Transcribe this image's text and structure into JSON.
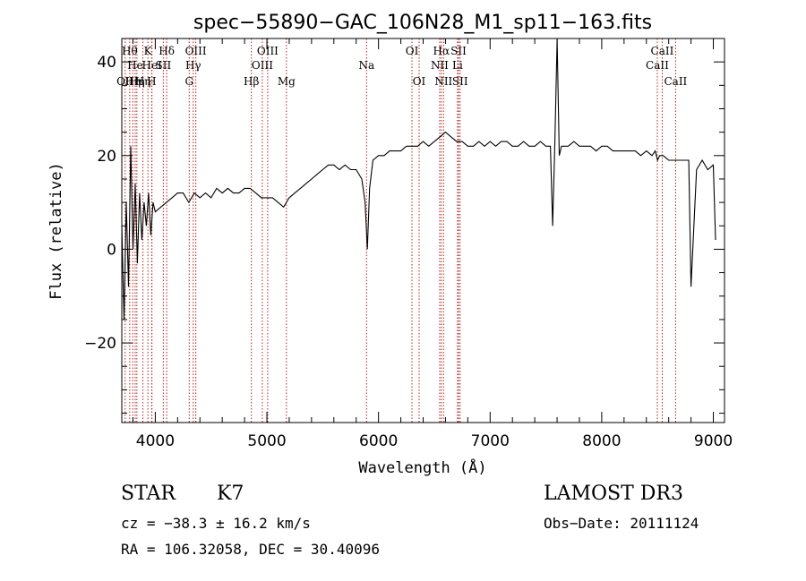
{
  "chart_data": {
    "type": "line",
    "title": "spec−55890−GAC_106N28_M1_sp11−163.fits",
    "xlabel": "Wavelength (Å)",
    "ylabel": "Flux (relative)",
    "xlim": [
      3700,
      9100
    ],
    "ylim": [
      -37,
      45
    ],
    "xticks": [
      4000,
      5000,
      6000,
      7000,
      8000,
      9000
    ],
    "xtick_labels": [
      "4000",
      "5000",
      "6000",
      "7000",
      "8000",
      "9000"
    ],
    "yticks": [
      -20,
      0,
      20,
      40
    ],
    "ytick_labels": [
      "−20",
      "0",
      "20",
      "40"
    ],
    "grid": false,
    "series": [
      {
        "name": "flux",
        "x": [
          3700,
          3720,
          3740,
          3760,
          3780,
          3800,
          3820,
          3840,
          3860,
          3880,
          3900,
          3920,
          3940,
          3960,
          3980,
          4000,
          4050,
          4100,
          4150,
          4200,
          4250,
          4300,
          4350,
          4400,
          4450,
          4500,
          4550,
          4600,
          4650,
          4700,
          4750,
          4800,
          4850,
          4900,
          4950,
          5000,
          5050,
          5100,
          5150,
          5200,
          5250,
          5300,
          5350,
          5400,
          5450,
          5500,
          5550,
          5600,
          5650,
          5700,
          5750,
          5800,
          5850,
          5880,
          5900,
          5920,
          5950,
          6000,
          6050,
          6100,
          6150,
          6200,
          6250,
          6300,
          6350,
          6400,
          6450,
          6500,
          6550,
          6600,
          6650,
          6700,
          6750,
          6800,
          6850,
          6900,
          6950,
          7000,
          7050,
          7100,
          7150,
          7200,
          7250,
          7300,
          7350,
          7400,
          7450,
          7500,
          7540,
          7560,
          7580,
          7600,
          7620,
          7640,
          7660,
          7700,
          7750,
          7800,
          7850,
          7900,
          7950,
          8000,
          8050,
          8100,
          8150,
          8200,
          8250,
          8300,
          8350,
          8400,
          8450,
          8480,
          8500,
          8520,
          8550,
          8600,
          8650,
          8700,
          8750,
          8780,
          8800,
          8850,
          8900,
          8950,
          9000,
          9020
        ],
        "y": [
          5,
          -15,
          10,
          -8,
          22,
          0,
          14,
          -3,
          12,
          2,
          10,
          5,
          12,
          3,
          10,
          8,
          9,
          10,
          11,
          12,
          12,
          10,
          12,
          11,
          12,
          11,
          13,
          12,
          13,
          12,
          12,
          13,
          13,
          12,
          11,
          11,
          11,
          10,
          9,
          11,
          12,
          13,
          14,
          15,
          16,
          17,
          18,
          18,
          17,
          18,
          17,
          17,
          15,
          10,
          0,
          13,
          19,
          20,
          20,
          21,
          21,
          21,
          22,
          22,
          22,
          23,
          22,
          23,
          24,
          25,
          24,
          23,
          23,
          22,
          22,
          23,
          22,
          23,
          22,
          23,
          23,
          22,
          22,
          23,
          22,
          22,
          23,
          22,
          22,
          5,
          23,
          45,
          20,
          22,
          22,
          22,
          23,
          22,
          22,
          22,
          21,
          22,
          22,
          21,
          21,
          21,
          21,
          21,
          20,
          21,
          20,
          21,
          19,
          20,
          20,
          19,
          19,
          19,
          19,
          19,
          -8,
          17,
          19,
          17,
          18,
          2
        ],
        "color": "#000000"
      }
    ],
    "spectral_lines": [
      {
        "wavelength": 3730,
        "label": "OII",
        "row": 3
      },
      {
        "wavelength": 3771,
        "label": "Hθ",
        "row": 1
      },
      {
        "wavelength": 3798,
        "label": "Hη",
        "row": 3
      },
      {
        "wavelength": 3820,
        "label": "He",
        "row": 2
      },
      {
        "wavelength": 3835,
        "label": "Hη",
        "row": 3
      },
      {
        "wavelength": 3889,
        "label": "Hη",
        "row": 3
      },
      {
        "wavelength": 3934,
        "label": "K",
        "row": 1
      },
      {
        "wavelength": 3968,
        "label": "H",
        "row": 3
      },
      {
        "wavelength": 3970,
        "label": "HeI",
        "row": 2
      },
      {
        "wavelength": 4072,
        "label": "SII",
        "row": 2
      },
      {
        "wavelength": 4102,
        "label": "Hδ",
        "row": 1
      },
      {
        "wavelength": 4304,
        "label": "G",
        "row": 3
      },
      {
        "wavelength": 4340,
        "label": "Hγ",
        "row": 2
      },
      {
        "wavelength": 4363,
        "label": "OIII",
        "row": 1
      },
      {
        "wavelength": 4861,
        "label": "Hβ",
        "row": 3
      },
      {
        "wavelength": 4959,
        "label": "OIII",
        "row": 2
      },
      {
        "wavelength": 5007,
        "label": "OIII",
        "row": 1
      },
      {
        "wavelength": 5175,
        "label": "Mg",
        "row": 3
      },
      {
        "wavelength": 5893,
        "label": "Na",
        "row": 2
      },
      {
        "wavelength": 6300,
        "label": "OI",
        "row": 1
      },
      {
        "wavelength": 6364,
        "label": "OI",
        "row": 3
      },
      {
        "wavelength": 6548,
        "label": "NII",
        "row": 2
      },
      {
        "wavelength": 6563,
        "label": "Hα",
        "row": 1
      },
      {
        "wavelength": 6583,
        "label": "NII",
        "row": 3
      },
      {
        "wavelength": 6708,
        "label": "Li",
        "row": 2
      },
      {
        "wavelength": 6717,
        "label": "SII",
        "row": 1
      },
      {
        "wavelength": 6731,
        "label": "SII",
        "row": 3
      },
      {
        "wavelength": 8498,
        "label": "CaII",
        "row": 2
      },
      {
        "wavelength": 8542,
        "label": "CaII",
        "row": 1
      },
      {
        "wavelength": 8662,
        "label": "CaII",
        "row": 3
      }
    ]
  },
  "info": {
    "class": "STAR",
    "subclass": "K7",
    "survey": "LAMOST DR3",
    "cz": "cz = −38.3 ± 16.2 km/s",
    "obs_date": "Obs−Date: 20111124",
    "radec": "RA = 106.32058, DEC =  30.40096"
  }
}
